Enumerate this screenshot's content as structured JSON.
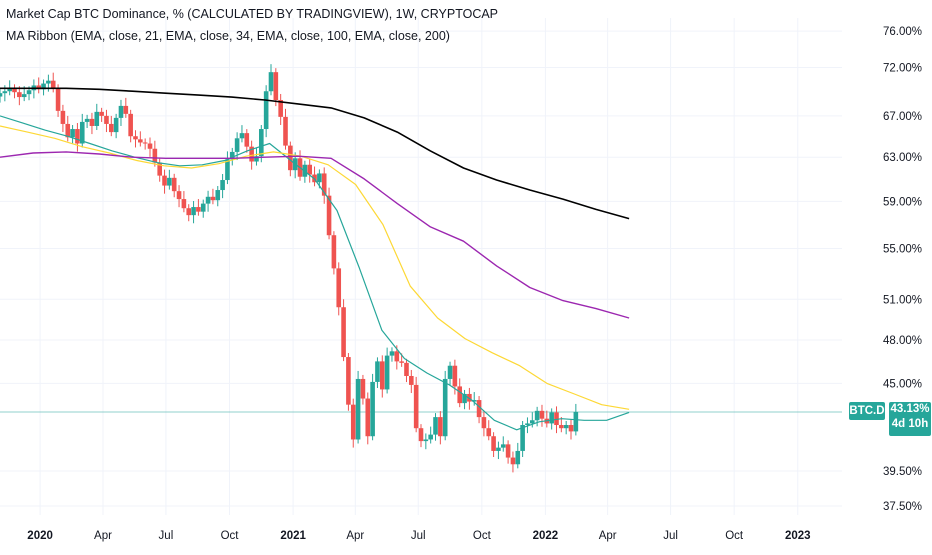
{
  "header": {
    "title": "Market Cap BTC Dominance, % (CALCULATED BY TRADINGVIEW), 1W, CRYPTOCAP",
    "subtitle": "MA Ribbon (EMA, close, 21, EMA, close, 34, EMA, close, 100, EMA, close, 200)"
  },
  "price_marker": {
    "symbol": "BTC.D",
    "value": "43.13%",
    "countdown": "4d 10h"
  },
  "colors": {
    "up": "#26a69a",
    "down": "#ef5350",
    "ema21": "#26a69a",
    "ema34": "#fdd835",
    "ema100": "#9c27b0",
    "ema200": "#000000",
    "grid": "#f0f3fa",
    "text": "#131722"
  },
  "chart_data": {
    "type": "candlestick",
    "y_scale": "log",
    "ylim": [
      37.0,
      77.5
    ],
    "y_ticks": [
      "76.00%",
      "72.00%",
      "67.00%",
      "63.00%",
      "59.00%",
      "55.00%",
      "51.00%",
      "48.00%",
      "45.00%",
      "39.50%",
      "37.50%"
    ],
    "y_tick_values": [
      76.0,
      72.0,
      67.0,
      63.0,
      59.0,
      55.0,
      51.0,
      48.0,
      45.0,
      39.5,
      37.5
    ],
    "x_range": [
      "2019-11-04",
      "2023-03-06"
    ],
    "x_ticks": [
      {
        "label": "2020",
        "date": "2020-01-01"
      },
      {
        "label": "Apr",
        "date": "2020-04-01"
      },
      {
        "label": "Jul",
        "date": "2020-07-01"
      },
      {
        "label": "Oct",
        "date": "2020-10-01"
      },
      {
        "label": "2021",
        "date": "2021-01-01"
      },
      {
        "label": "Apr",
        "date": "2021-04-01"
      },
      {
        "label": "Jul",
        "date": "2021-07-01"
      },
      {
        "label": "Oct",
        "date": "2021-10-01"
      },
      {
        "label": "2022",
        "date": "2022-01-01"
      },
      {
        "label": "Apr",
        "date": "2022-04-01"
      },
      {
        "label": "Jul",
        "date": "2022-07-01"
      },
      {
        "label": "Oct",
        "date": "2022-10-01"
      },
      {
        "label": "2023",
        "date": "2023-01-01"
      }
    ],
    "last_value_line": 43.13,
    "candles_close": [
      69.3,
      69.5,
      69.8,
      69.4,
      68.9,
      69.2,
      69.6,
      70.1,
      69.7,
      70.3,
      70.6,
      69.8,
      67.5,
      66.2,
      64.9,
      65.7,
      64.3,
      66.4,
      66.7,
      66.0,
      67.4,
      67.0,
      66.2,
      65.4,
      66.8,
      68.0,
      67.2,
      65.0,
      64.7,
      64.4,
      64.3,
      63.8,
      62.5,
      61.3,
      60.4,
      61.1,
      59.9,
      59.2,
      58.4,
      57.8,
      58.5,
      58.1,
      58.8,
      59.4,
      59.1,
      60.0,
      60.9,
      62.8,
      63.5,
      64.8,
      65.3,
      64.0,
      62.6,
      63.1,
      65.7,
      69.5,
      71.5,
      68.6,
      66.9,
      64.1,
      61.8,
      62.9,
      61.2,
      62.3,
      61.4,
      60.7,
      61.5,
      59.5,
      56.1,
      53.4,
      50.4,
      46.8,
      43.6,
      41.4,
      45.3,
      44.0,
      41.6,
      45.1,
      46.5,
      44.6,
      46.9,
      47.2,
      46.5,
      46.4,
      45.5,
      44.9,
      42.1,
      41.3,
      41.4,
      41.7,
      42.8,
      41.6,
      45.3,
      46.2,
      44.8,
      43.7,
      44.3,
      43.8,
      43.9,
      42.8,
      42.1,
      41.6,
      40.7,
      40.9,
      41.1,
      40.3,
      39.9,
      40.7,
      42.3,
      42.4,
      42.6,
      43.2,
      42.7,
      42.4,
      43.1,
      42.3,
      42.1,
      42.3,
      41.9,
      43.13
    ],
    "series": [
      {
        "name": "EMA 21",
        "values": [
          67.0,
          66.3,
          65.6,
          65.0,
          64.3,
          63.6,
          63.0,
          62.5,
          62.2,
          62.3,
          62.7,
          63.6,
          64.3,
          62.6,
          61.0,
          58.2,
          53.4,
          48.7,
          46.7,
          45.7,
          44.9,
          43.9,
          42.6,
          42.0,
          42.5,
          42.7,
          42.6,
          42.6,
          43.1
        ]
      },
      {
        "name": "EMA 34",
        "values": [
          66.0,
          65.4,
          64.8,
          64.0,
          63.4,
          62.7,
          62.2,
          62.0,
          62.4,
          63.1,
          63.5,
          63.1,
          62.3,
          60.5,
          57.0,
          52.0,
          49.6,
          48.1,
          47.1,
          46.2,
          45.0,
          44.3,
          43.6,
          43.3
        ]
      },
      {
        "name": "EMA 100",
        "values": [
          63.0,
          63.4,
          63.5,
          63.3,
          63.0,
          62.9,
          62.9,
          62.9,
          63.0,
          63.1,
          62.9,
          61.0,
          58.8,
          56.8,
          55.6,
          53.6,
          51.9,
          50.9,
          50.3,
          49.6
        ]
      },
      {
        "name": "EMA 200",
        "values": [
          69.8,
          69.8,
          69.8,
          69.7,
          69.5,
          69.3,
          69.1,
          68.9,
          68.6,
          68.2,
          67.8,
          66.8,
          65.4,
          63.6,
          62.0,
          60.9,
          60.0,
          59.2,
          58.3,
          57.5
        ]
      }
    ]
  }
}
